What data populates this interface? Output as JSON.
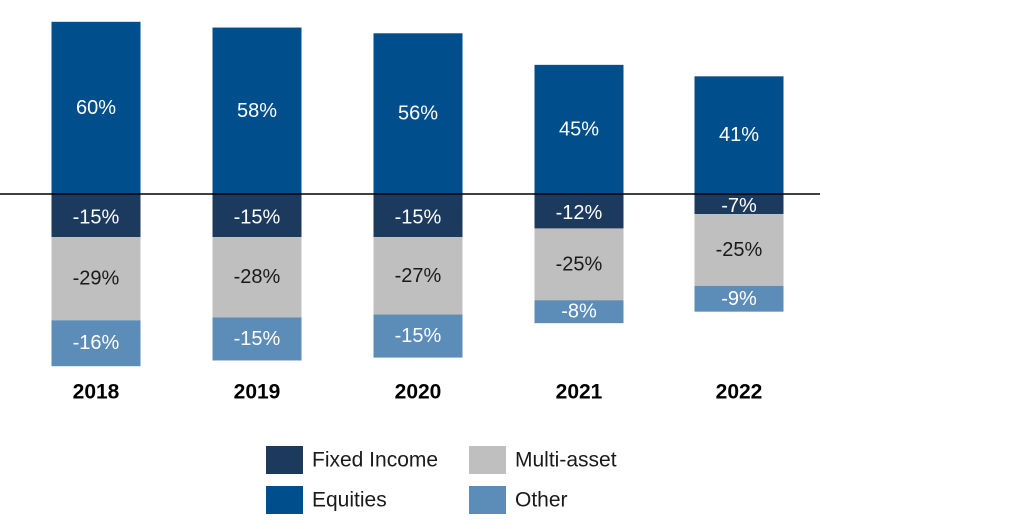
{
  "chart_data": {
    "type": "bar",
    "stacked": true,
    "diverging": true,
    "categories": [
      "2018",
      "2019",
      "2020",
      "2021",
      "2022"
    ],
    "series": [
      {
        "name": "Equities",
        "key": "equities",
        "values": [
          60,
          58,
          56,
          45,
          41
        ],
        "labels": [
          "60%",
          "58%",
          "56%",
          "45%",
          "41%"
        ],
        "color": "#004f8c"
      },
      {
        "name": "Fixed Income",
        "key": "fixed",
        "values": [
          -15,
          -15,
          -15,
          -12,
          -7
        ],
        "labels": [
          "-15%",
          "-15%",
          "-15%",
          "-12%",
          "-7%"
        ],
        "color": "#1c3a5e"
      },
      {
        "name": "Multi-asset",
        "key": "multi",
        "values": [
          -29,
          -28,
          -27,
          -25,
          -25
        ],
        "labels": [
          "-29%",
          "-28%",
          "-27%",
          "-25%",
          "-25%"
        ],
        "color": "#bfbfbf"
      },
      {
        "name": "Other",
        "key": "other",
        "values": [
          -16,
          -15,
          -15,
          -8,
          -9
        ],
        "labels": [
          "-16%",
          "-15%",
          "-15%",
          "-8%",
          "-9%"
        ],
        "color": "#5b8db8"
      }
    ],
    "title": "",
    "xlabel": "",
    "ylabel": "",
    "ylim": [
      -60,
      60
    ],
    "grid": false,
    "legend_position": "bottom"
  },
  "legend": {
    "items": [
      {
        "name": "Fixed Income",
        "color": "#1c3a5e"
      },
      {
        "name": "Multi-asset",
        "color": "#bfbfbf"
      },
      {
        "name": "Equities",
        "color": "#004f8c"
      },
      {
        "name": "Other",
        "color": "#5b8db8"
      }
    ]
  }
}
